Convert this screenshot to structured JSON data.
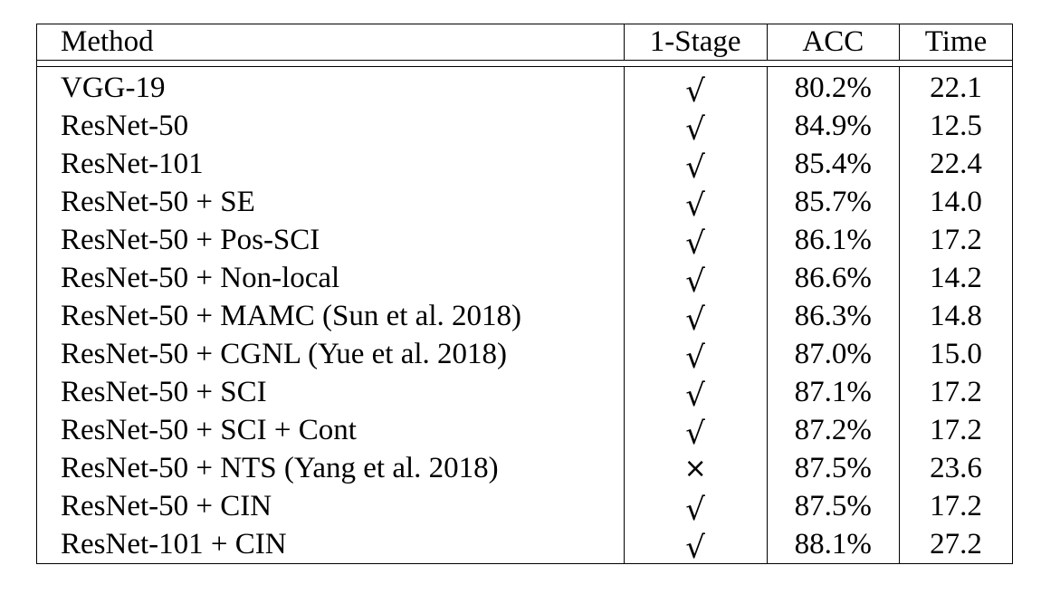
{
  "header": {
    "method": "Method",
    "stage": "1-Stage",
    "acc": "ACC",
    "time": "Time"
  },
  "symbols": {
    "check": "√",
    "cross": "×"
  },
  "rows": [
    {
      "method": "VGG-19",
      "stage": "check",
      "acc": "80.2%",
      "time": "22.1"
    },
    {
      "method": "ResNet-50",
      "stage": "check",
      "acc": "84.9%",
      "time": "12.5"
    },
    {
      "method": "ResNet-101",
      "stage": "check",
      "acc": "85.4%",
      "time": "22.4"
    },
    {
      "method": "ResNet-50 + SE",
      "stage": "check",
      "acc": "85.7%",
      "time": "14.0"
    },
    {
      "method": "ResNet-50 + Pos-SCI",
      "stage": "check",
      "acc": "86.1%",
      "time": "17.2"
    },
    {
      "method": "ResNet-50 + Non-local",
      "stage": "check",
      "acc": "86.6%",
      "time": "14.2"
    },
    {
      "method": "ResNet-50 + MAMC (Sun et al. 2018)",
      "stage": "check",
      "acc": "86.3%",
      "time": "14.8"
    },
    {
      "method": "ResNet-50 + CGNL (Yue et al. 2018)",
      "stage": "check",
      "acc": "87.0%",
      "time": "15.0"
    },
    {
      "method": "ResNet-50 + SCI",
      "stage": "check",
      "acc": "87.1%",
      "time": "17.2"
    },
    {
      "method": "ResNet-50 + SCI + Cont",
      "stage": "check",
      "acc": "87.2%",
      "time": "17.2"
    },
    {
      "method": "ResNet-50 + NTS (Yang et al. 2018)",
      "stage": "cross",
      "acc": "87.5%",
      "time": "23.6"
    },
    {
      "method": "ResNet-50 + CIN",
      "stage": "check",
      "acc": "87.5%",
      "time": "17.2"
    },
    {
      "method": "ResNet-101 + CIN",
      "stage": "check",
      "acc": "88.1%",
      "time": "27.2",
      "acc_bold": true
    }
  ]
}
